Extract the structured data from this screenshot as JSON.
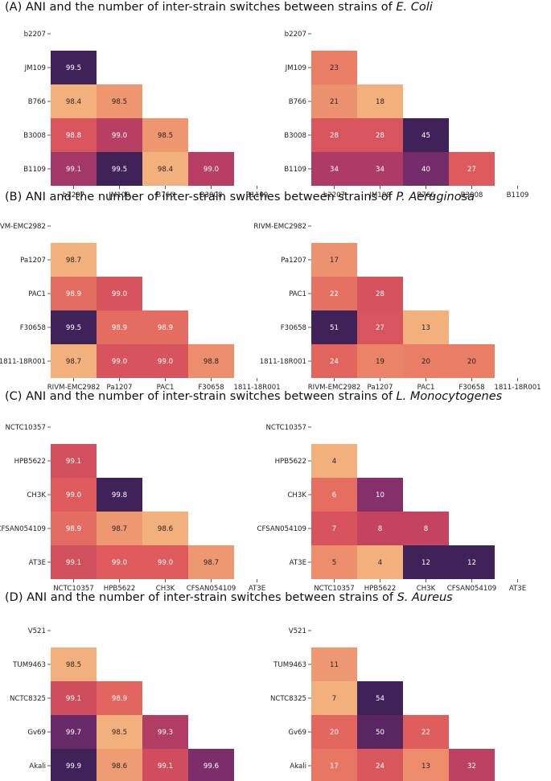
{
  "palette": [
    "#f1b07c",
    "#ea8166",
    "#df5a5c",
    "#c4435f",
    "#9b346a",
    "#6f2b6b",
    "#3f2358"
  ],
  "panels": [
    {
      "label": "(A)",
      "title_prefix": "ANI and the number of inter-strain switches between strains of ",
      "species": "E. Coli",
      "strains": [
        "b2207",
        "JM109",
        "B766",
        "B3008",
        "B1109"
      ]
    },
    {
      "label": "(B)",
      "title_prefix": "ANI and the number of inter-strain switches between strains of ",
      "species": "P. Aeruginosa",
      "strains": [
        "RIVM-EMC2982",
        "Pa1207",
        "PAC1",
        "F30658",
        "1811-18R001"
      ]
    },
    {
      "label": "(C)",
      "title_prefix": "ANI and the number of inter-strain switches between strains of ",
      "species": "L. Monocytogenes",
      "strains": [
        "NCTC10357",
        "HPB5622",
        "CH3K",
        "CFSAN054109",
        "AT3E"
      ]
    },
    {
      "label": "(D)",
      "title_prefix": "ANI and the number of inter-strain switches between strains of ",
      "species": "S. Aureus",
      "strains": [
        "V521",
        "TUM9463",
        "NCTC8325",
        "Gv69",
        "Akali"
      ]
    }
  ],
  "chart_data": [
    {
      "type": "heatmap",
      "panel": 0,
      "side": "ani",
      "format": "%.1f",
      "x": [
        "b2207",
        "JM109",
        "B766",
        "B3008",
        "B1109"
      ],
      "y": [
        "b2207",
        "JM109",
        "B766",
        "B3008",
        "B1109"
      ],
      "values": [
        [
          99.5
        ],
        [
          98.4,
          98.5
        ],
        [
          98.8,
          99.0,
          98.5
        ],
        [
          99.1,
          99.5,
          98.4,
          99.0
        ]
      ],
      "range": [
        98.4,
        99.5
      ]
    },
    {
      "type": "heatmap",
      "panel": 0,
      "side": "switches",
      "format": "%d",
      "x": [
        "b2207",
        "JM109",
        "B766",
        "B3008",
        "B1109"
      ],
      "y": [
        "b2207",
        "JM109",
        "B766",
        "B3008",
        "B1109"
      ],
      "values": [
        [
          23
        ],
        [
          21,
          18
        ],
        [
          28,
          28,
          45
        ],
        [
          34,
          34,
          40,
          27
        ]
      ],
      "range": [
        18,
        45
      ]
    },
    {
      "type": "heatmap",
      "panel": 1,
      "side": "ani",
      "format": "%.1f",
      "x": [
        "RIVM-EMC2982",
        "Pa1207",
        "PAC1",
        "F30658",
        "1811-18R001"
      ],
      "y": [
        "RIVM-EMC2982",
        "Pa1207",
        "PAC1",
        "F30658",
        "1811-18R001"
      ],
      "values": [
        [
          98.7
        ],
        [
          98.9,
          99.0
        ],
        [
          99.5,
          98.9,
          98.9
        ],
        [
          98.7,
          99.0,
          99.0,
          98.8
        ]
      ],
      "range": [
        98.7,
        99.5
      ]
    },
    {
      "type": "heatmap",
      "panel": 1,
      "side": "switches",
      "format": "%d",
      "x": [
        "RIVM-EMC2982",
        "Pa1207",
        "PAC1",
        "F30658",
        "1811-18R001"
      ],
      "y": [
        "RIVM-EMC2982",
        "Pa1207",
        "PAC1",
        "F30658",
        "1811-18R001"
      ],
      "values": [
        [
          17
        ],
        [
          22,
          28
        ],
        [
          51,
          27,
          13
        ],
        [
          24,
          19,
          20,
          20
        ]
      ],
      "range": [
        13,
        51
      ]
    },
    {
      "type": "heatmap",
      "panel": 2,
      "side": "ani",
      "format": "%.1f",
      "x": [
        "NCTC10357",
        "HPB5622",
        "CH3K",
        "CFSAN054109",
        "AT3E"
      ],
      "y": [
        "NCTC10357",
        "HPB5622",
        "CH3K",
        "CFSAN054109",
        "AT3E"
      ],
      "values": [
        [
          99.1
        ],
        [
          99.0,
          99.8
        ],
        [
          98.9,
          98.7,
          98.6
        ],
        [
          99.1,
          99.0,
          99.0,
          98.7
        ]
      ],
      "range": [
        98.6,
        99.8
      ]
    },
    {
      "type": "heatmap",
      "panel": 2,
      "side": "switches",
      "format": "%d",
      "x": [
        "NCTC10357",
        "HPB5622",
        "CH3K",
        "CFSAN054109",
        "AT3E"
      ],
      "y": [
        "NCTC10357",
        "HPB5622",
        "CH3K",
        "CFSAN054109",
        "AT3E"
      ],
      "values": [
        [
          4
        ],
        [
          6,
          10
        ],
        [
          7,
          8,
          8
        ],
        [
          5,
          4,
          12,
          12
        ]
      ],
      "range": [
        4,
        12
      ]
    },
    {
      "type": "heatmap",
      "panel": 3,
      "side": "ani",
      "format": "%.1f",
      "x": [
        "V521",
        "TUM9463",
        "NCTC8325",
        "Gv69",
        "Akali"
      ],
      "y": [
        "V521",
        "TUM9463",
        "NCTC8325",
        "Gv69",
        "Akali"
      ],
      "values": [
        [
          98.5
        ],
        [
          99.1,
          98.9
        ],
        [
          99.7,
          98.5,
          99.3
        ],
        [
          99.9,
          98.6,
          99.1,
          99.6
        ]
      ],
      "range": [
        98.5,
        99.9
      ]
    },
    {
      "type": "heatmap",
      "panel": 3,
      "side": "switches",
      "format": "%d",
      "x": [
        "V521",
        "TUM9463",
        "NCTC8325",
        "Gv69",
        "Akali"
      ],
      "y": [
        "V521",
        "TUM9463",
        "NCTC8325",
        "Gv69",
        "Akali"
      ],
      "values": [
        [
          11
        ],
        [
          7,
          54
        ],
        [
          20,
          50,
          22
        ],
        [
          17,
          24,
          13,
          32
        ]
      ],
      "range": [
        7,
        54
      ]
    }
  ]
}
